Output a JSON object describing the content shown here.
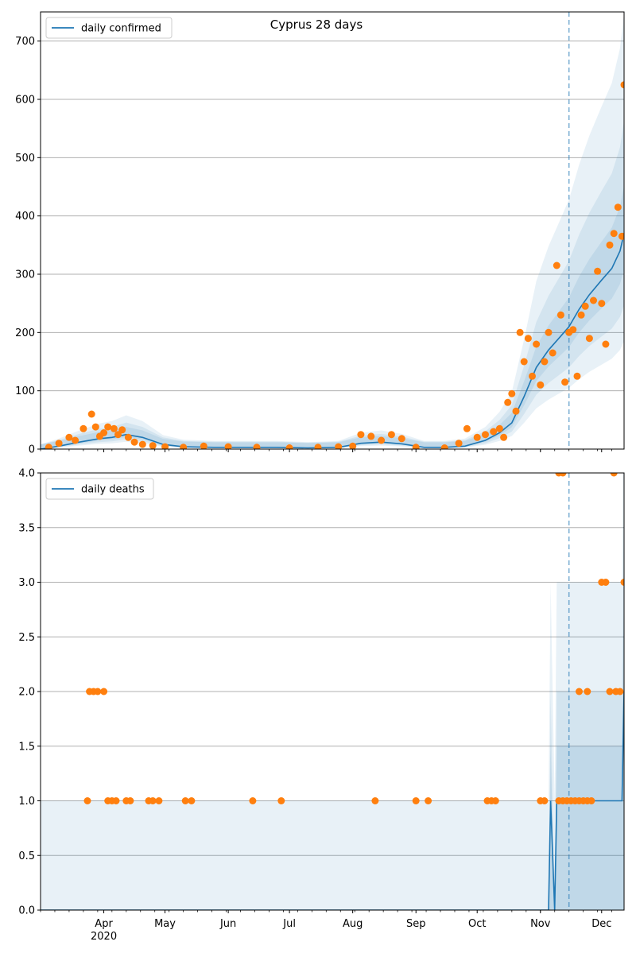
{
  "chart_data": [
    {
      "type": "line",
      "title": "Cyprus 28 days",
      "xlabel": "",
      "ylabel": "",
      "ylim": [
        0,
        750
      ],
      "yticks": [
        0,
        100,
        200,
        300,
        400,
        500,
        600,
        700
      ],
      "grid": "horizontal",
      "legend": {
        "position": "top-left",
        "entries": [
          "daily confirmed"
        ]
      },
      "colors": {
        "line": "#1f77b4",
        "points": "#ff7f0e",
        "band": "#1f77b4",
        "vline": "#1f77b4"
      },
      "forecast_start": "2020-11-15",
      "series": [
        {
          "name": "daily confirmed",
          "kind": "line",
          "x": [
            "2020-03-01",
            "2020-03-10",
            "2020-03-20",
            "2020-03-30",
            "2020-04-05",
            "2020-04-12",
            "2020-04-20",
            "2020-04-30",
            "2020-05-10",
            "2020-05-25",
            "2020-06-10",
            "2020-06-25",
            "2020-07-10",
            "2020-07-25",
            "2020-08-05",
            "2020-08-15",
            "2020-08-25",
            "2020-09-05",
            "2020-09-15",
            "2020-09-25",
            "2020-10-05",
            "2020-10-12",
            "2020-10-18",
            "2020-10-24",
            "2020-10-30",
            "2020-11-05",
            "2020-11-10",
            "2020-11-15",
            "2020-11-20",
            "2020-11-25",
            "2020-12-01",
            "2020-12-06",
            "2020-12-10",
            "2020-12-12"
          ],
          "y": [
            0,
            5,
            12,
            18,
            20,
            25,
            20,
            8,
            4,
            3,
            3,
            3,
            2,
            3,
            10,
            12,
            9,
            3,
            3,
            5,
            15,
            28,
            45,
            90,
            140,
            170,
            190,
            210,
            240,
            265,
            290,
            310,
            340,
            370
          ]
        },
        {
          "name": "observed",
          "kind": "scatter",
          "x": [
            "2020-03-05",
            "2020-03-10",
            "2020-03-15",
            "2020-03-18",
            "2020-03-22",
            "2020-03-26",
            "2020-03-28",
            "2020-03-30",
            "2020-04-01",
            "2020-04-03",
            "2020-04-06",
            "2020-04-08",
            "2020-04-10",
            "2020-04-13",
            "2020-04-16",
            "2020-04-20",
            "2020-04-25",
            "2020-05-01",
            "2020-05-10",
            "2020-05-20",
            "2020-06-01",
            "2020-06-15",
            "2020-07-01",
            "2020-07-15",
            "2020-07-25",
            "2020-08-01",
            "2020-08-05",
            "2020-08-10",
            "2020-08-15",
            "2020-08-20",
            "2020-08-25",
            "2020-09-01",
            "2020-09-15",
            "2020-09-22",
            "2020-09-26",
            "2020-10-01",
            "2020-10-05",
            "2020-10-09",
            "2020-10-12",
            "2020-10-14",
            "2020-10-16",
            "2020-10-18",
            "2020-10-20",
            "2020-10-22",
            "2020-10-24",
            "2020-10-26",
            "2020-10-28",
            "2020-10-30",
            "2020-11-01",
            "2020-11-03",
            "2020-11-05",
            "2020-11-07",
            "2020-11-09",
            "2020-11-11",
            "2020-11-13",
            "2020-11-15",
            "2020-11-17",
            "2020-11-19",
            "2020-11-21",
            "2020-11-23",
            "2020-11-25",
            "2020-11-27",
            "2020-11-29",
            "2020-12-01",
            "2020-12-03",
            "2020-12-05",
            "2020-12-07",
            "2020-12-09",
            "2020-12-11",
            "2020-12-12"
          ],
          "y": [
            3,
            10,
            20,
            15,
            35,
            60,
            38,
            22,
            28,
            38,
            35,
            25,
            33,
            20,
            12,
            8,
            6,
            4,
            3,
            5,
            4,
            3,
            2,
            3,
            4,
            5,
            25,
            22,
            15,
            25,
            18,
            3,
            2,
            10,
            35,
            20,
            25,
            30,
            35,
            20,
            80,
            95,
            65,
            200,
            150,
            190,
            125,
            180,
            110,
            150,
            200,
            165,
            315,
            230,
            115,
            200,
            205,
            125,
            230,
            245,
            190,
            255,
            305,
            250,
            180,
            350,
            370,
            415,
            365,
            625
          ]
        }
      ]
    },
    {
      "type": "line",
      "title": "",
      "xlabel": "",
      "ylabel": "",
      "ylim": [
        0,
        4
      ],
      "yticks": [
        "0.0",
        "0.5",
        "1.0",
        "1.5",
        "2.0",
        "2.5",
        "3.0",
        "3.5",
        "4.0"
      ],
      "xticks": [
        "Apr\n2020",
        "May",
        "Jun",
        "Jul",
        "Aug",
        "Sep",
        "Oct",
        "Nov",
        "Dec"
      ],
      "grid": "horizontal",
      "legend": {
        "position": "top-left",
        "entries": [
          "daily deaths"
        ]
      },
      "colors": {
        "line": "#1f77b4",
        "points": "#ff7f0e",
        "band": "#1f77b4",
        "vline": "#1f77b4"
      },
      "forecast_start": "2020-11-15",
      "series": [
        {
          "name": "daily deaths",
          "kind": "line",
          "x": [
            "2020-03-01",
            "2020-11-05",
            "2020-11-06",
            "2020-11-08",
            "2020-11-09",
            "2020-11-10",
            "2020-11-12",
            "2020-12-11",
            "2020-12-12"
          ],
          "y": [
            0,
            0,
            1,
            0,
            1,
            1,
            1,
            1,
            2
          ]
        },
        {
          "name": "observed",
          "kind": "scatter",
          "x": [
            "2020-03-25",
            "2020-03-27",
            "2020-03-29",
            "2020-04-01",
            "2020-03-24",
            "2020-04-03",
            "2020-04-05",
            "2020-04-07",
            "2020-04-12",
            "2020-04-14",
            "2020-04-23",
            "2020-04-25",
            "2020-04-28",
            "2020-05-11",
            "2020-05-14",
            "2020-06-13",
            "2020-06-27",
            "2020-08-12",
            "2020-09-01",
            "2020-09-07",
            "2020-10-06",
            "2020-10-08",
            "2020-10-10",
            "2020-11-01",
            "2020-11-03",
            "2020-11-10",
            "2020-11-12",
            "2020-11-14",
            "2020-11-16",
            "2020-11-18",
            "2020-11-20",
            "2020-11-22",
            "2020-11-24",
            "2020-11-26",
            "2020-11-20",
            "2020-11-24",
            "2020-12-01",
            "2020-12-03",
            "2020-12-05",
            "2020-12-08",
            "2020-12-10",
            "2020-12-12",
            "2020-11-10",
            "2020-11-12",
            "2020-12-07"
          ],
          "y": [
            2,
            2,
            2,
            2,
            1,
            1,
            1,
            1,
            1,
            1,
            1,
            1,
            1,
            1,
            1,
            1,
            1,
            1,
            1,
            1,
            1,
            1,
            1,
            1,
            1,
            1,
            1,
            1,
            1,
            1,
            1,
            1,
            1,
            1,
            2,
            2,
            3,
            3,
            2,
            2,
            2,
            3,
            4,
            4,
            4
          ]
        }
      ]
    }
  ]
}
